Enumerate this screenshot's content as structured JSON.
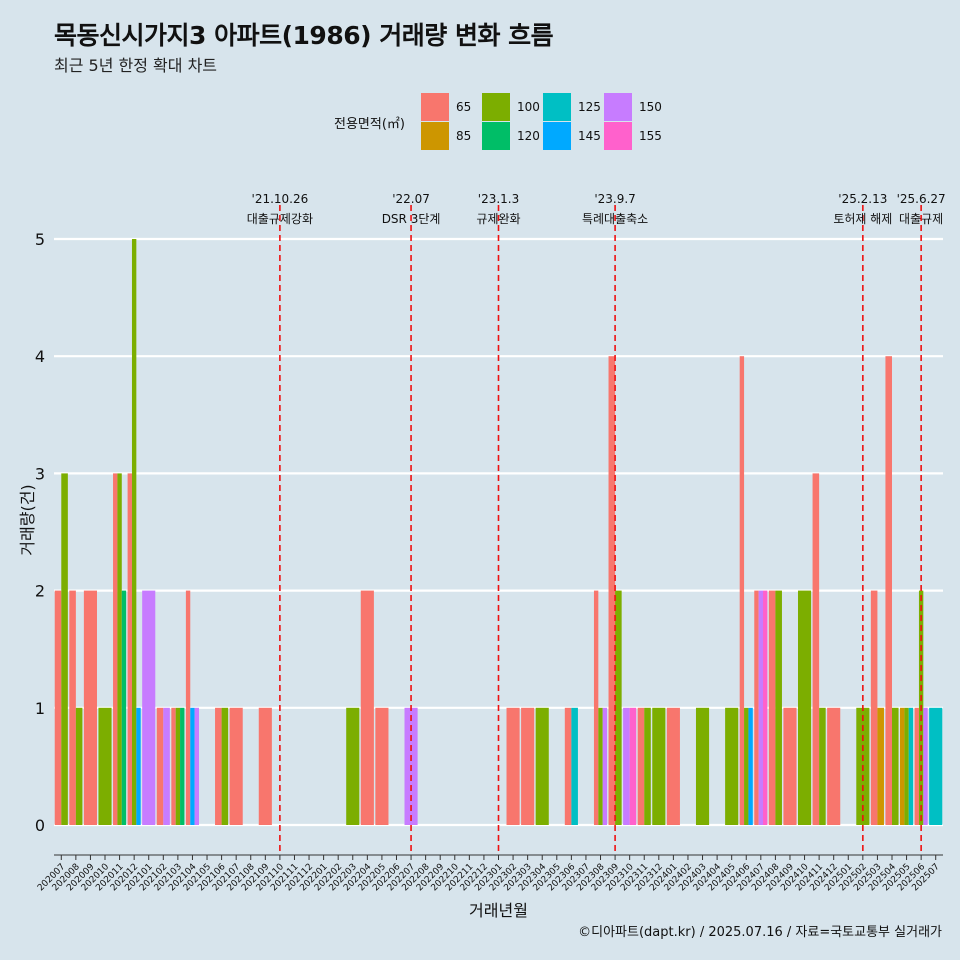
{
  "title": "목동신시가지3 아파트(1986) 거래량 변화 흐름",
  "subtitle": "최근 5년 한정 확대 차트",
  "caption": "©디아파트(dapt.kr) / 2025.07.16 / 자료=국토교통부 실거래가",
  "chart_data": {
    "type": "bar",
    "title": "목동신시가지3 아파트(1986) 거래량 변화 흐름",
    "subtitle": "최근 5년 한정 확대 차트",
    "xlabel": "거래년월",
    "ylabel": "거래량(건)",
    "ylim": [
      -0.25,
      5.3
    ],
    "yticks": [
      0,
      1,
      2,
      3,
      4,
      5
    ],
    "grid": true,
    "legend": {
      "title": "전용면적(㎡)",
      "position": "top"
    },
    "series_colors": {
      "65": "#F8766D",
      "85": "#CD9600",
      "100": "#7CAE00",
      "120": "#00BE67",
      "125": "#00BFC4",
      "145": "#00A9FF",
      "150": "#C77CFF",
      "155": "#FF61CC"
    },
    "legend_order": [
      "65",
      "85",
      "100",
      "120",
      "125",
      "145",
      "150",
      "155"
    ],
    "categories": [
      "202007",
      "202008",
      "202009",
      "202010",
      "202011",
      "202012",
      "202101",
      "202102",
      "202103",
      "202104",
      "202105",
      "202106",
      "202107",
      "202108",
      "202109",
      "202110",
      "202111",
      "202112",
      "202201",
      "202202",
      "202203",
      "202204",
      "202205",
      "202206",
      "202207",
      "202208",
      "202209",
      "202210",
      "202211",
      "202212",
      "202301",
      "202302",
      "202303",
      "202304",
      "202305",
      "202306",
      "202307",
      "202308",
      "202309",
      "202310",
      "202311",
      "202312",
      "202401",
      "202402",
      "202403",
      "202404",
      "202405",
      "202406",
      "202407",
      "202408",
      "202409",
      "202410",
      "202411",
      "202412",
      "202501",
      "202502",
      "202503",
      "202504",
      "202505",
      "202506",
      "202507"
    ],
    "data": [
      {
        "month": "202007",
        "bars": [
          [
            "65",
            2
          ],
          [
            "100",
            3
          ]
        ]
      },
      {
        "month": "202008",
        "bars": [
          [
            "65",
            2
          ],
          [
            "100",
            1
          ]
        ]
      },
      {
        "month": "202009",
        "bars": [
          [
            "65",
            2
          ]
        ]
      },
      {
        "month": "202010",
        "bars": [
          [
            "100",
            1
          ]
        ]
      },
      {
        "month": "202011",
        "bars": [
          [
            "65",
            3
          ],
          [
            "100",
            3
          ],
          [
            "120",
            2
          ]
        ]
      },
      {
        "month": "202012",
        "bars": [
          [
            "65",
            3
          ],
          [
            "100",
            5
          ],
          [
            "145",
            1
          ]
        ]
      },
      {
        "month": "202101",
        "bars": [
          [
            "150",
            2
          ]
        ]
      },
      {
        "month": "202102",
        "bars": [
          [
            "65",
            1
          ],
          [
            "150",
            1
          ]
        ]
      },
      {
        "month": "202103",
        "bars": [
          [
            "65",
            1
          ],
          [
            "100",
            1
          ],
          [
            "120",
            1
          ]
        ]
      },
      {
        "month": "202104",
        "bars": [
          [
            "65",
            2
          ],
          [
            "145",
            1
          ],
          [
            "150",
            1
          ]
        ]
      },
      {
        "month": "202105",
        "bars": []
      },
      {
        "month": "202106",
        "bars": [
          [
            "65",
            1
          ],
          [
            "100",
            1
          ]
        ]
      },
      {
        "month": "202107",
        "bars": [
          [
            "65",
            1
          ]
        ]
      },
      {
        "month": "202108",
        "bars": []
      },
      {
        "month": "202109",
        "bars": [
          [
            "65",
            1
          ]
        ]
      },
      {
        "month": "202110",
        "bars": []
      },
      {
        "month": "202111",
        "bars": []
      },
      {
        "month": "202112",
        "bars": []
      },
      {
        "month": "202201",
        "bars": []
      },
      {
        "month": "202202",
        "bars": []
      },
      {
        "month": "202203",
        "bars": [
          [
            "100",
            1
          ]
        ]
      },
      {
        "month": "202204",
        "bars": [
          [
            "65",
            2
          ]
        ]
      },
      {
        "month": "202205",
        "bars": [
          [
            "65",
            1
          ]
        ]
      },
      {
        "month": "202206",
        "bars": []
      },
      {
        "month": "202207",
        "bars": [
          [
            "150",
            1
          ]
        ]
      },
      {
        "month": "202208",
        "bars": []
      },
      {
        "month": "202209",
        "bars": []
      },
      {
        "month": "202210",
        "bars": []
      },
      {
        "month": "202211",
        "bars": []
      },
      {
        "month": "202212",
        "bars": []
      },
      {
        "month": "202301",
        "bars": []
      },
      {
        "month": "202302",
        "bars": [
          [
            "65",
            1
          ]
        ]
      },
      {
        "month": "202303",
        "bars": [
          [
            "65",
            1
          ]
        ]
      },
      {
        "month": "202304",
        "bars": [
          [
            "100",
            1
          ]
        ]
      },
      {
        "month": "202305",
        "bars": []
      },
      {
        "month": "202306",
        "bars": [
          [
            "65",
            1
          ],
          [
            "125",
            1
          ]
        ]
      },
      {
        "month": "202307",
        "bars": []
      },
      {
        "month": "202308",
        "bars": [
          [
            "65",
            2
          ],
          [
            "100",
            1
          ],
          [
            "150",
            1
          ]
        ]
      },
      {
        "month": "202309",
        "bars": [
          [
            "65",
            4
          ],
          [
            "100",
            2
          ]
        ]
      },
      {
        "month": "202310",
        "bars": [
          [
            "150",
            1
          ],
          [
            "155",
            1
          ]
        ]
      },
      {
        "month": "202311",
        "bars": [
          [
            "65",
            1
          ],
          [
            "100",
            1
          ]
        ]
      },
      {
        "month": "202312",
        "bars": [
          [
            "100",
            1
          ]
        ]
      },
      {
        "month": "202401",
        "bars": [
          [
            "65",
            1
          ]
        ]
      },
      {
        "month": "202402",
        "bars": []
      },
      {
        "month": "202403",
        "bars": [
          [
            "100",
            1
          ]
        ]
      },
      {
        "month": "202404",
        "bars": []
      },
      {
        "month": "202405",
        "bars": [
          [
            "100",
            1
          ]
        ]
      },
      {
        "month": "202406",
        "bars": [
          [
            "65",
            4
          ],
          [
            "100",
            1
          ],
          [
            "145",
            1
          ]
        ]
      },
      {
        "month": "202407",
        "bars": [
          [
            "65",
            2
          ],
          [
            "150",
            2
          ],
          [
            "155",
            2
          ]
        ]
      },
      {
        "month": "202408",
        "bars": [
          [
            "65",
            2
          ],
          [
            "100",
            2
          ]
        ]
      },
      {
        "month": "202409",
        "bars": [
          [
            "65",
            1
          ]
        ]
      },
      {
        "month": "202410",
        "bars": [
          [
            "100",
            2
          ]
        ]
      },
      {
        "month": "202411",
        "bars": [
          [
            "65",
            3
          ],
          [
            "100",
            1
          ]
        ]
      },
      {
        "month": "202412",
        "bars": [
          [
            "65",
            1
          ]
        ]
      },
      {
        "month": "202501",
        "bars": []
      },
      {
        "month": "202502",
        "bars": [
          [
            "100",
            1
          ]
        ]
      },
      {
        "month": "202503",
        "bars": [
          [
            "65",
            2
          ],
          [
            "85",
            1
          ]
        ]
      },
      {
        "month": "202504",
        "bars": [
          [
            "65",
            4
          ],
          [
            "100",
            1
          ]
        ]
      },
      {
        "month": "202505",
        "bars": [
          [
            "85",
            1
          ],
          [
            "100",
            1
          ],
          [
            "125",
            1
          ]
        ]
      },
      {
        "month": "202506",
        "bars": [
          [
            "65",
            1
          ],
          [
            "100",
            2
          ],
          [
            "150",
            1
          ]
        ]
      },
      {
        "month": "202507",
        "bars": [
          [
            "125",
            1
          ]
        ]
      }
    ],
    "events": [
      {
        "label": "'21.10.26",
        "text": "대출규제강화",
        "month": "202110"
      },
      {
        "label": "'22.07",
        "text": "DSR 3단계",
        "month": "202207"
      },
      {
        "label": "'23.1.3",
        "text": "규제완화",
        "month": "202301"
      },
      {
        "label": "'23.9.7",
        "text": "특례대출축소",
        "month": "202309"
      },
      {
        "label": "'25.2.13",
        "text": "토허제 해제",
        "month": "202502"
      },
      {
        "label": "'25.6.27",
        "text": "대출규제",
        "month": "202506"
      }
    ]
  }
}
